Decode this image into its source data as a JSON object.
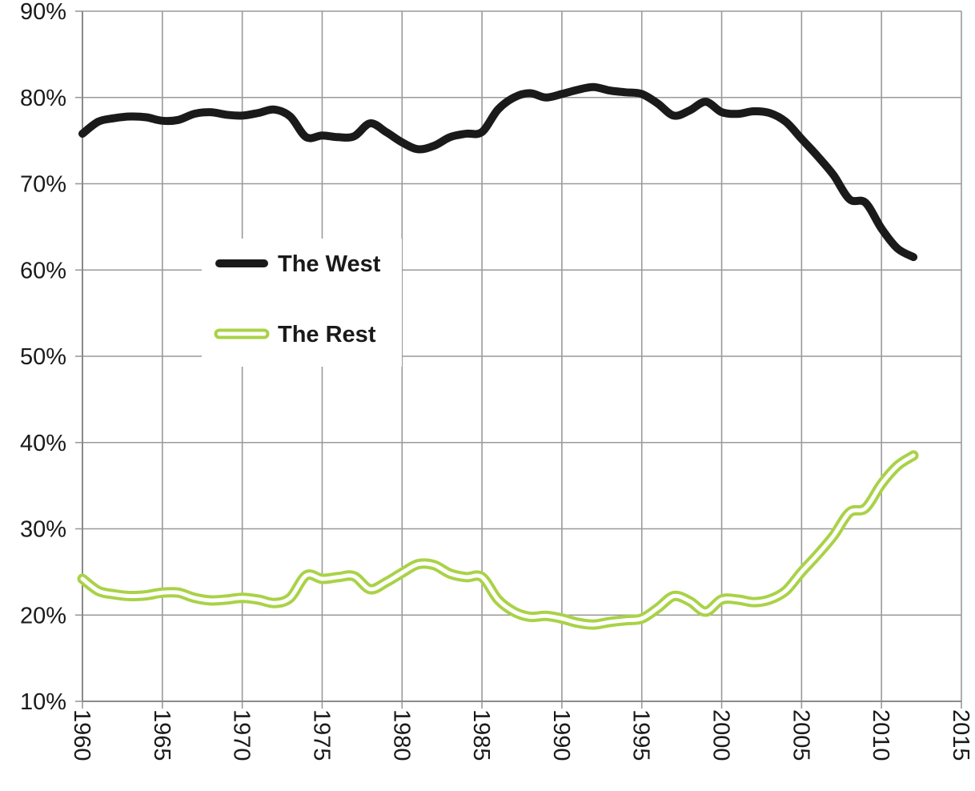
{
  "chart_data": {
    "type": "line",
    "title": "",
    "xlabel": "",
    "ylabel": "",
    "xlim": [
      1960,
      2015
    ],
    "ylim": [
      10,
      90
    ],
    "grid": true,
    "legend_position": "center-left",
    "x_ticks": [
      {
        "value": 1960,
        "label": "1960"
      },
      {
        "value": 1965,
        "label": "1965"
      },
      {
        "value": 1970,
        "label": "1970"
      },
      {
        "value": 1975,
        "label": "1975"
      },
      {
        "value": 1980,
        "label": "1980"
      },
      {
        "value": 1985,
        "label": "1985"
      },
      {
        "value": 1990,
        "label": "1990"
      },
      {
        "value": 1995,
        "label": "1995"
      },
      {
        "value": 2000,
        "label": "2000"
      },
      {
        "value": 2005,
        "label": "2005"
      },
      {
        "value": 2010,
        "label": "2010"
      },
      {
        "value": 2015,
        "label": "2015"
      }
    ],
    "y_ticks": [
      {
        "value": 10,
        "label": "10%"
      },
      {
        "value": 20,
        "label": "20%"
      },
      {
        "value": 30,
        "label": "30%"
      },
      {
        "value": 40,
        "label": "40%"
      },
      {
        "value": 50,
        "label": "50%"
      },
      {
        "value": 60,
        "label": "60%"
      },
      {
        "value": 70,
        "label": "70%"
      },
      {
        "value": 80,
        "label": "80%"
      },
      {
        "value": 90,
        "label": "90%"
      }
    ],
    "x": [
      1960,
      1961,
      1962,
      1963,
      1964,
      1965,
      1966,
      1967,
      1968,
      1969,
      1970,
      1971,
      1972,
      1973,
      1974,
      1975,
      1976,
      1977,
      1978,
      1979,
      1980,
      1981,
      1982,
      1983,
      1984,
      1985,
      1986,
      1987,
      1988,
      1989,
      1990,
      1991,
      1992,
      1993,
      1994,
      1995,
      1996,
      1997,
      1998,
      1999,
      2000,
      2001,
      2002,
      2003,
      2004,
      2005,
      2006,
      2007,
      2008,
      2009,
      2010,
      2011,
      2012
    ],
    "series": [
      {
        "name": "The West",
        "color": "#1a1a1a",
        "style": "solid",
        "values": [
          75.8,
          77.2,
          77.6,
          77.8,
          77.7,
          77.3,
          77.4,
          78.1,
          78.3,
          78.0,
          77.9,
          78.2,
          78.6,
          77.8,
          75.4,
          75.6,
          75.4,
          75.5,
          77.0,
          76.0,
          74.8,
          74.0,
          74.4,
          75.4,
          75.8,
          76.0,
          78.6,
          80.0,
          80.5,
          80.0,
          80.4,
          80.9,
          81.2,
          80.8,
          80.6,
          80.4,
          79.3,
          77.9,
          78.5,
          79.5,
          78.3,
          78.1,
          78.4,
          78.2,
          77.2,
          75.2,
          73.2,
          71.0,
          68.2,
          67.8,
          64.8,
          62.5,
          61.5
        ]
      },
      {
        "name": "The Rest",
        "color": "#a9d247",
        "style": "double",
        "values": [
          24.2,
          22.8,
          22.4,
          22.2,
          22.3,
          22.6,
          22.6,
          22.0,
          21.7,
          21.8,
          22.0,
          21.8,
          21.4,
          22.0,
          24.6,
          24.2,
          24.4,
          24.5,
          23.0,
          23.8,
          24.9,
          25.9,
          25.8,
          24.8,
          24.4,
          24.4,
          21.8,
          20.4,
          19.8,
          19.9,
          19.6,
          19.1,
          18.9,
          19.2,
          19.4,
          19.6,
          20.8,
          22.2,
          21.6,
          20.4,
          21.8,
          21.8,
          21.5,
          21.8,
          22.8,
          25.0,
          27.0,
          29.2,
          31.9,
          32.4,
          35.2,
          37.3,
          38.5
        ]
      }
    ]
  }
}
